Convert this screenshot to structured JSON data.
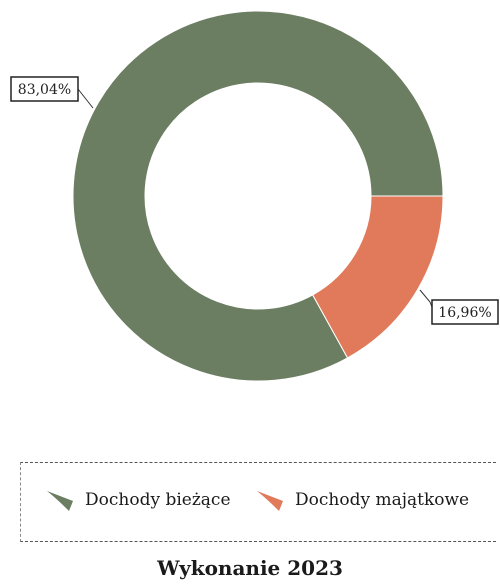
{
  "chart_data": {
    "type": "pie",
    "donut": true,
    "categories": [
      "Dochody bieżące",
      "Dochody majątkowe"
    ],
    "values": [
      83.04,
      16.96
    ],
    "data_labels": [
      "83,04%",
      "16,96%"
    ],
    "colors": [
      "#6b7e62",
      "#e07a5a"
    ],
    "legend_position": "bottom",
    "title": "Wykonanie 2023"
  }
}
